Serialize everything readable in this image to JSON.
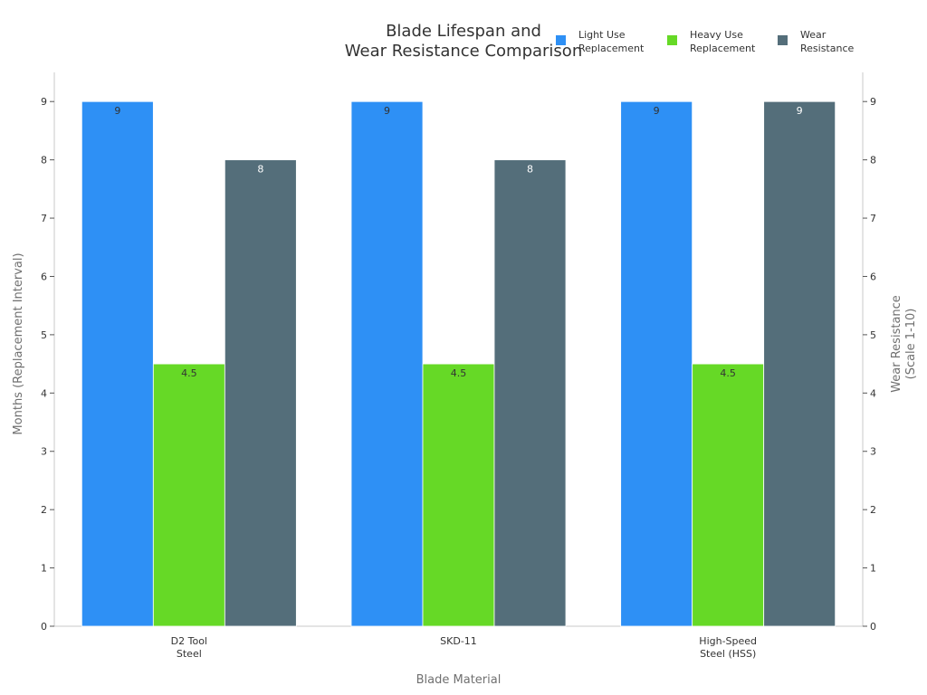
{
  "chart_data": {
    "type": "bar",
    "title": [
      "Blade Lifespan and",
      "Wear Resistance Comparison"
    ],
    "xlabel": "Blade Material",
    "ylabel": "Months (Replacement Interval)",
    "y2label": [
      "Wear Resistance",
      "(Scale 1-10)"
    ],
    "categories": [
      [
        "D2 Tool",
        "Steel"
      ],
      [
        "SKD-11"
      ],
      [
        "High-Speed",
        "Steel (HSS)"
      ]
    ],
    "series": [
      {
        "name": [
          "Light Use",
          "Replacement"
        ],
        "values": [
          9,
          9,
          9
        ],
        "color": "#2e90f5",
        "axis": "left",
        "label_color": "#333333"
      },
      {
        "name": [
          "Heavy Use",
          "Replacement"
        ],
        "values": [
          4.5,
          4.5,
          4.5
        ],
        "color": "#66d926",
        "axis": "left",
        "label_color": "#333333"
      },
      {
        "name": [
          "Wear",
          "Resistance"
        ],
        "values": [
          8,
          8,
          9
        ],
        "color": "#546e7a",
        "axis": "right",
        "label_color": "#ffffff"
      }
    ],
    "ylim": [
      0,
      9.5
    ],
    "y2lim": [
      0,
      9.5
    ],
    "yticks": [
      0,
      1,
      2,
      3,
      4,
      5,
      6,
      7,
      8,
      9
    ],
    "y2ticks": [
      0,
      1,
      2,
      3,
      4,
      5,
      6,
      7,
      8,
      9
    ],
    "grid": false,
    "legend_position": "top-right"
  }
}
